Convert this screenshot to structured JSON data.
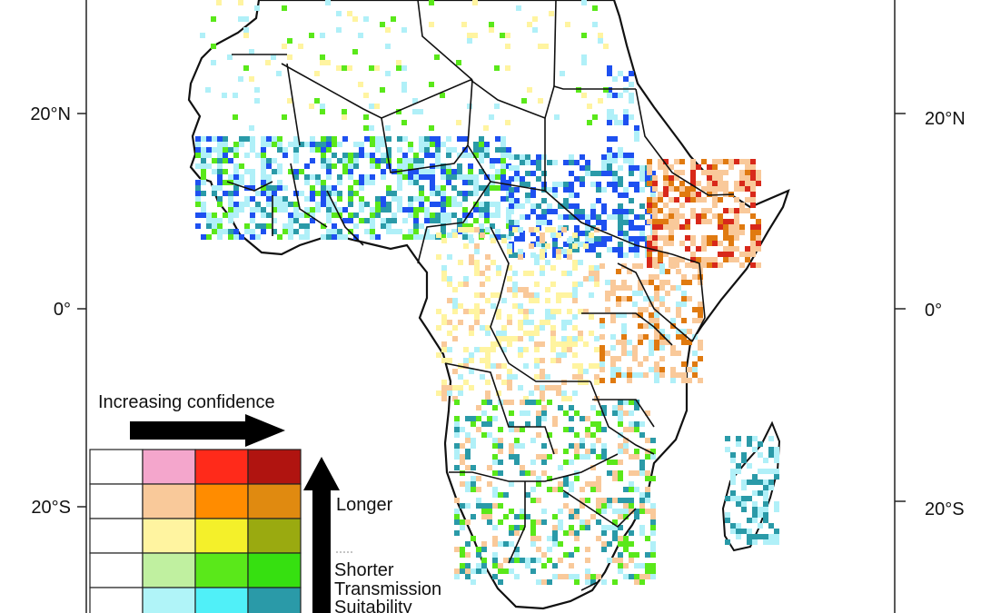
{
  "axes": {
    "lat_labels_left": [
      "20°N",
      "0°",
      "20°S"
    ],
    "lat_labels_right": [
      "20°N",
      "0°",
      "20°S"
    ]
  },
  "legend": {
    "confidence_label": "Increasing confidence",
    "longer_label": "Longer",
    "shorter_label": "Shorter",
    "transmission_label": "Transmission",
    "suitability_label": "Suitability",
    "grid_colors": [
      [
        "#ffffff",
        "#f4a6cc",
        "#ff2a1a",
        "#b01410"
      ],
      [
        "#ffffff",
        "#f9c99a",
        "#ff8c00",
        "#e08a10"
      ],
      [
        "#ffffff",
        "#fff4a0",
        "#f4f02a",
        "#9aaa10"
      ],
      [
        "#ffffff",
        "#c0f0a0",
        "#5ae81a",
        "#36e010"
      ],
      [
        "#ffffff",
        "#b0f4f8",
        "#50f0f8",
        "#2a9aa8"
      ]
    ]
  },
  "map": {
    "colors": {
      "blue": "#1e50f0",
      "teal": "#2a9aa8",
      "cyan": "#b0f0f8",
      "orange": "#f9c99a",
      "dark_orange": "#e07a10",
      "red": "#d8281a",
      "yellow": "#fff4a0",
      "green": "#5ae81a"
    }
  }
}
